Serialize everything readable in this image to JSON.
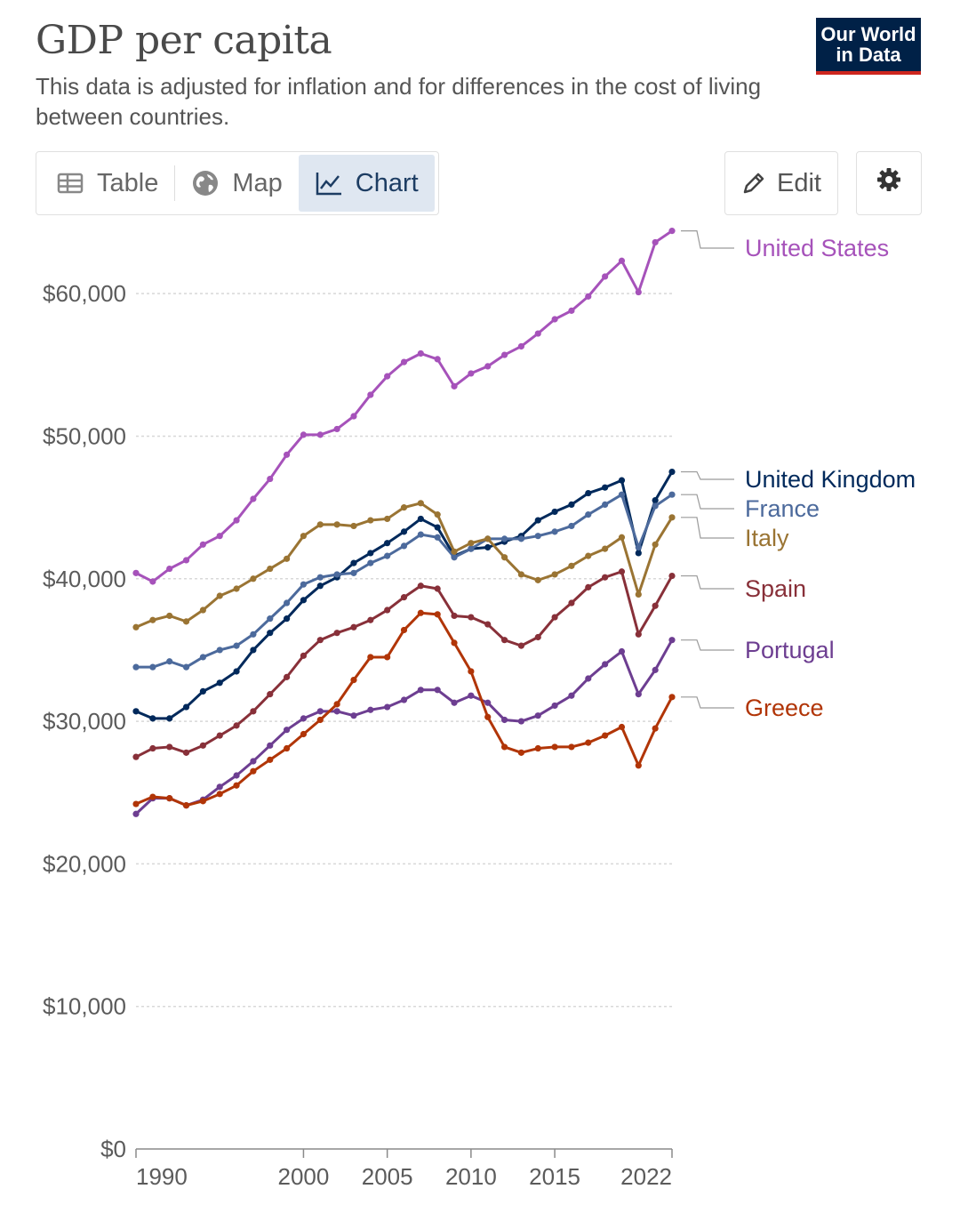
{
  "header": {
    "title": "GDP per capita",
    "subtitle": "This data is adjusted for inflation and for differences in the cost of living between countries.",
    "logo_line1": "Our World",
    "logo_line2": "in Data"
  },
  "tabs": [
    {
      "label": "Table",
      "icon": "table-icon",
      "active": false
    },
    {
      "label": "Map",
      "icon": "globe-icon",
      "active": false
    },
    {
      "label": "Chart",
      "icon": "line-chart-icon",
      "active": true
    }
  ],
  "toolbar": {
    "edit_label": "Edit",
    "edit_icon": "pencil-icon",
    "settings_icon": "gear-icon"
  },
  "colors": {
    "accent_tab_bg": "#dfe7f1",
    "logo_bg": "#002147",
    "logo_underline": "#ce261e"
  },
  "chart_data": {
    "type": "line",
    "title": "GDP per capita",
    "ylim": [
      0,
      65000
    ],
    "xlim": [
      1990,
      2022
    ],
    "y_ticks": [
      0,
      10000,
      20000,
      30000,
      40000,
      50000,
      60000
    ],
    "y_tick_labels": [
      "$0",
      "$10,000",
      "$20,000",
      "$30,000",
      "$40,000",
      "$50,000",
      "$60,000"
    ],
    "x_ticks": [
      1990,
      2000,
      2005,
      2010,
      2015,
      2022
    ],
    "x_tick_labels": [
      "1990",
      "2000",
      "2005",
      "2010",
      "2015",
      "2022"
    ],
    "grid": "horizontal dotted",
    "legend": "right, labels at line ends",
    "x": [
      1990,
      1991,
      1992,
      1993,
      1994,
      1995,
      1996,
      1997,
      1998,
      1999,
      2000,
      2001,
      2002,
      2003,
      2004,
      2005,
      2006,
      2007,
      2008,
      2009,
      2010,
      2011,
      2012,
      2013,
      2014,
      2015,
      2016,
      2017,
      2018,
      2019,
      2020,
      2021,
      2022
    ],
    "series": [
      {
        "name": "United States",
        "color": "#a652ba",
        "values": [
          40400,
          39800,
          40700,
          41300,
          42400,
          43000,
          44100,
          45600,
          47000,
          48700,
          50100,
          50100,
          50500,
          51400,
          52900,
          54200,
          55200,
          55800,
          55400,
          53500,
          54400,
          54900,
          55700,
          56300,
          57200,
          58200,
          58800,
          59800,
          61200,
          62300,
          60100,
          63600,
          64400
        ]
      },
      {
        "name": "United Kingdom",
        "color": "#00295b",
        "values": [
          30700,
          30200,
          30200,
          31000,
          32100,
          32700,
          33500,
          35000,
          36200,
          37200,
          38500,
          39500,
          40100,
          41100,
          41800,
          42500,
          43300,
          44200,
          43600,
          41600,
          42100,
          42200,
          42600,
          43000,
          44100,
          44700,
          45200,
          46000,
          46400,
          46900,
          41800,
          45500,
          47500
        ]
      },
      {
        "name": "France",
        "color": "#4c6a9c",
        "values": [
          33800,
          33800,
          34200,
          33800,
          34500,
          35000,
          35300,
          36100,
          37200,
          38300,
          39600,
          40100,
          40300,
          40400,
          41100,
          41600,
          42300,
          43100,
          42900,
          41500,
          42100,
          42800,
          42800,
          42800,
          43000,
          43300,
          43700,
          44500,
          45200,
          45900,
          42200,
          45100,
          45900
        ]
      },
      {
        "name": "Italy",
        "color": "#9a7433",
        "values": [
          36600,
          37100,
          37400,
          37000,
          37800,
          38800,
          39300,
          40000,
          40700,
          41400,
          43000,
          43800,
          43800,
          43700,
          44100,
          44200,
          45000,
          45300,
          44500,
          41900,
          42500,
          42800,
          41500,
          40300,
          39900,
          40300,
          40900,
          41600,
          42100,
          42900,
          38900,
          42400,
          44300
        ]
      },
      {
        "name": "Spain",
        "color": "#883039",
        "values": [
          27500,
          28100,
          28200,
          27800,
          28300,
          29000,
          29700,
          30700,
          31900,
          33100,
          34600,
          35700,
          36200,
          36600,
          37100,
          37800,
          38700,
          39500,
          39300,
          37400,
          37300,
          36800,
          35700,
          35300,
          35900,
          37300,
          38300,
          39400,
          40100,
          40500,
          36100,
          38100,
          40200
        ]
      },
      {
        "name": "Portugal",
        "color": "#6d3e91",
        "values": [
          23500,
          24600,
          24600,
          24100,
          24500,
          25400,
          26200,
          27200,
          28300,
          29400,
          30200,
          30700,
          30700,
          30400,
          30800,
          31000,
          31500,
          32200,
          32200,
          31300,
          31800,
          31300,
          30100,
          30000,
          30400,
          31100,
          31800,
          33000,
          34000,
          34900,
          31900,
          33600,
          35700
        ]
      },
      {
        "name": "Greece",
        "color": "#b13507",
        "values": [
          24200,
          24700,
          24600,
          24100,
          24400,
          24900,
          25500,
          26500,
          27300,
          28100,
          29100,
          30100,
          31200,
          32900,
          34500,
          34500,
          36400,
          37600,
          37500,
          35500,
          33500,
          30300,
          28200,
          27800,
          28100,
          28200,
          28200,
          28500,
          29000,
          29600,
          26900,
          29500,
          31700
        ]
      }
    ]
  }
}
